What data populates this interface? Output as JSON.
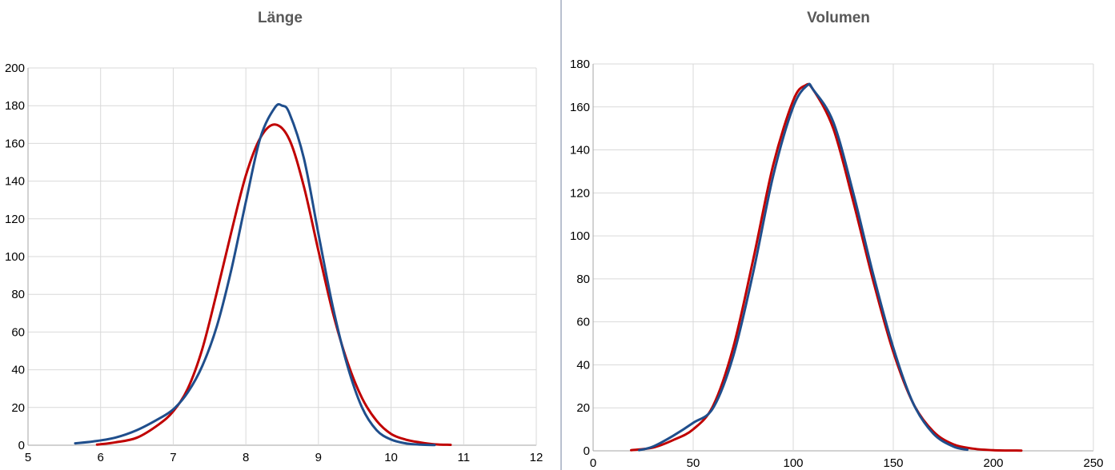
{
  "chart_data": [
    {
      "type": "line",
      "title": "Länge",
      "xlabel": "",
      "ylabel": "",
      "xlim": [
        5,
        12
      ],
      "ylim": [
        0,
        200
      ],
      "xticks": [
        5,
        6,
        7,
        8,
        9,
        10,
        11,
        12
      ],
      "yticks": [
        0,
        20,
        40,
        60,
        80,
        100,
        120,
        140,
        160,
        180,
        200
      ],
      "grid": true,
      "series": [
        {
          "color": "#c00000",
          "x": [
            5.95,
            6.2,
            6.5,
            6.8,
            7.0,
            7.2,
            7.4,
            7.6,
            7.8,
            8.0,
            8.2,
            8.4,
            8.6,
            8.8,
            9.0,
            9.2,
            9.4,
            9.6,
            9.8,
            10.0,
            10.2,
            10.4,
            10.6,
            10.82
          ],
          "y": [
            0.3,
            1.5,
            4,
            11,
            18,
            30,
            51,
            81,
            113,
            143,
            163,
            170,
            162,
            137,
            103,
            70,
            44,
            25,
            13,
            6,
            3,
            1.5,
            0.5,
            0.2
          ]
        },
        {
          "color": "#1f4e8c",
          "x": [
            5.65,
            5.9,
            6.2,
            6.5,
            6.8,
            7.0,
            7.2,
            7.4,
            7.6,
            7.8,
            8.0,
            8.2,
            8.4,
            8.5,
            8.6,
            8.8,
            9.0,
            9.2,
            9.4,
            9.6,
            9.8,
            10.0,
            10.2,
            10.4,
            10.6
          ],
          "y": [
            1,
            2,
            4,
            8,
            14,
            19,
            28,
            42,
            63,
            93,
            129,
            163,
            179,
            180,
            176,
            152,
            112,
            73,
            42,
            20,
            8,
            3,
            1,
            0.3,
            0.1
          ]
        }
      ]
    },
    {
      "type": "line",
      "title": "Volumen",
      "xlabel": "",
      "ylabel": "",
      "xlim": [
        0,
        250
      ],
      "ylim": [
        0,
        180
      ],
      "xticks": [
        0,
        50,
        100,
        150,
        200,
        250
      ],
      "yticks": [
        0,
        20,
        40,
        60,
        80,
        100,
        120,
        140,
        160,
        180
      ],
      "grid": true,
      "series": [
        {
          "color": "#c00000",
          "x": [
            19,
            30,
            40,
            50,
            60,
            70,
            80,
            90,
            100,
            106,
            110,
            120,
            130,
            140,
            150,
            160,
            170,
            180,
            190,
            200,
            214
          ],
          "y": [
            0.3,
            1.5,
            5,
            10,
            21,
            48,
            89,
            133,
            163,
            170,
            168,
            150,
            116,
            79,
            46,
            22,
            9,
            3,
            1,
            0.3,
            0.1
          ]
        },
        {
          "color": "#1f4e8c",
          "x": [
            23,
            30,
            40,
            50,
            60,
            70,
            80,
            90,
            100,
            107,
            110,
            120,
            130,
            140,
            150,
            160,
            170,
            180,
            187
          ],
          "y": [
            0.3,
            2,
            7,
            13,
            20,
            44,
            83,
            128,
            160,
            170,
            168,
            153,
            120,
            82,
            48,
            22,
            8,
            2,
            0.5
          ]
        }
      ]
    }
  ]
}
